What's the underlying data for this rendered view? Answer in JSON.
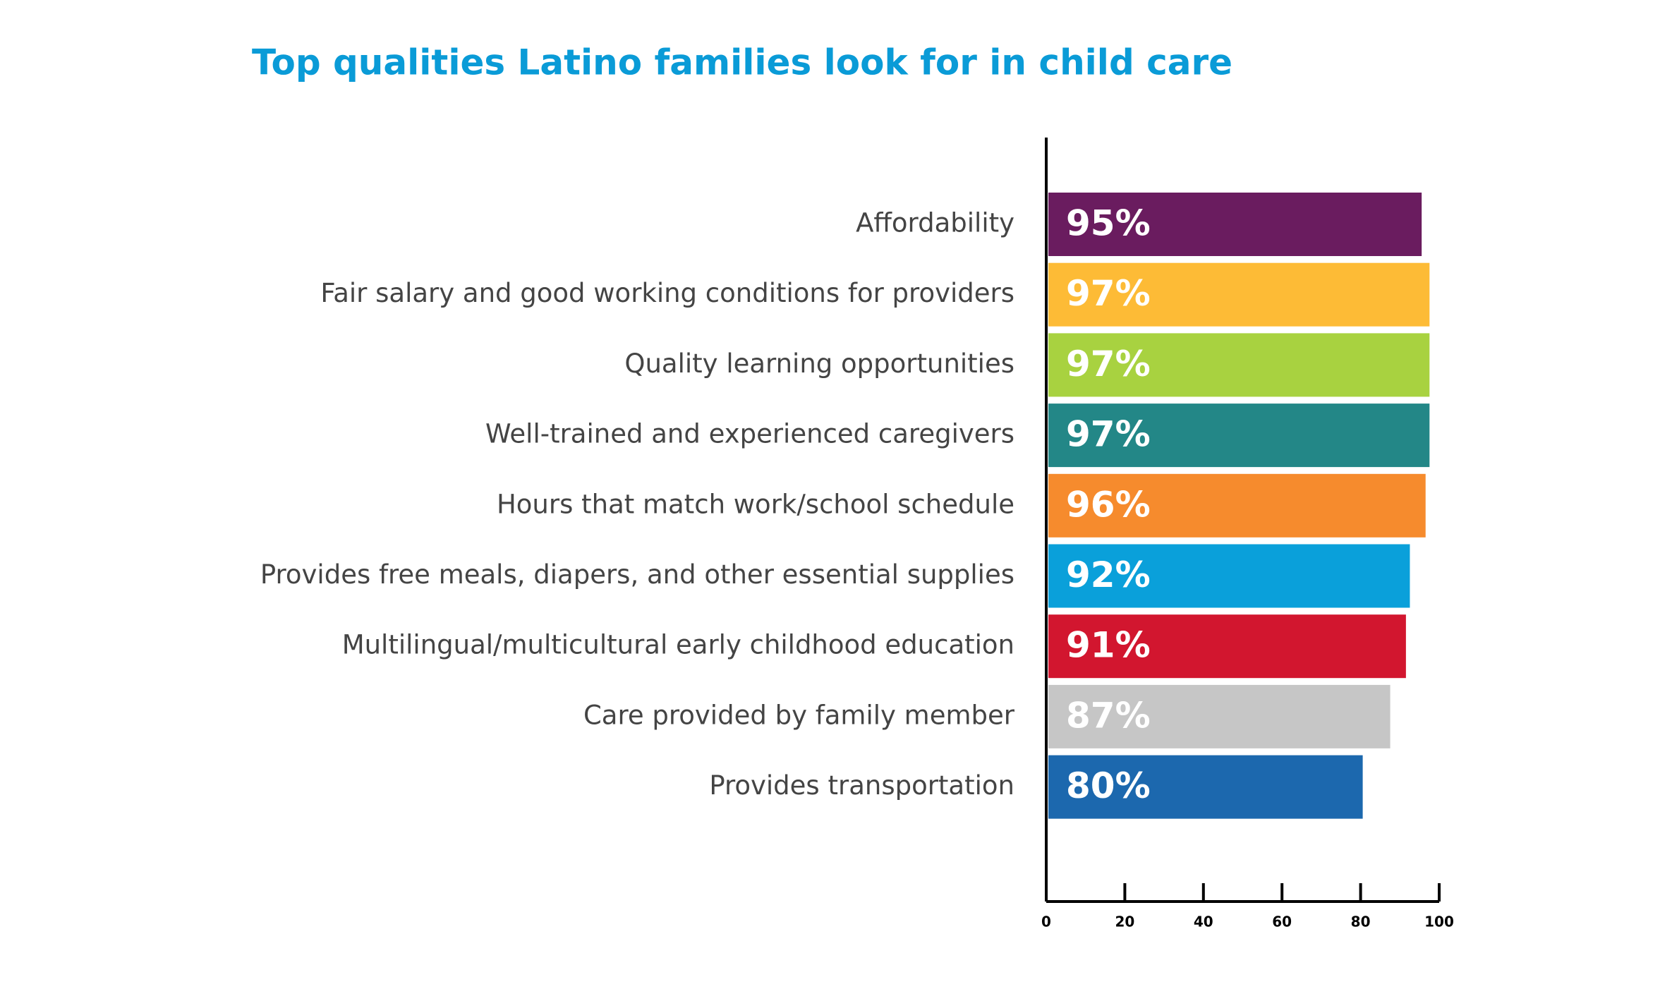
{
  "chart_data": {
    "type": "bar",
    "orientation": "horizontal",
    "title": "Top qualities Latino families look for in child care",
    "categories": [
      "Affordability",
      "Fair salary and good working conditions for providers",
      "Quality learning opportunities",
      "Well-trained and experienced caregivers",
      "Hours that match work/school schedule",
      "Provides free meals, diapers, and other essential supplies",
      "Multilingual/multicultural early childhood education",
      "Care provided by family member",
      "Provides transportation"
    ],
    "values": [
      95,
      97,
      97,
      97,
      96,
      92,
      91,
      87,
      80
    ],
    "value_labels": [
      "95%",
      "97%",
      "97%",
      "97%",
      "96%",
      "92%",
      "91%",
      "87%",
      "80%"
    ],
    "colors": [
      "#6a1c5f",
      "#fdbb36",
      "#a8d240",
      "#238787",
      "#f68b2d",
      "#0aa0da",
      "#d2162f",
      "#c6c6c6",
      "#1c68ae"
    ],
    "xlim": [
      0,
      100
    ],
    "xticks": [
      0,
      20,
      40,
      60,
      80,
      100
    ]
  }
}
